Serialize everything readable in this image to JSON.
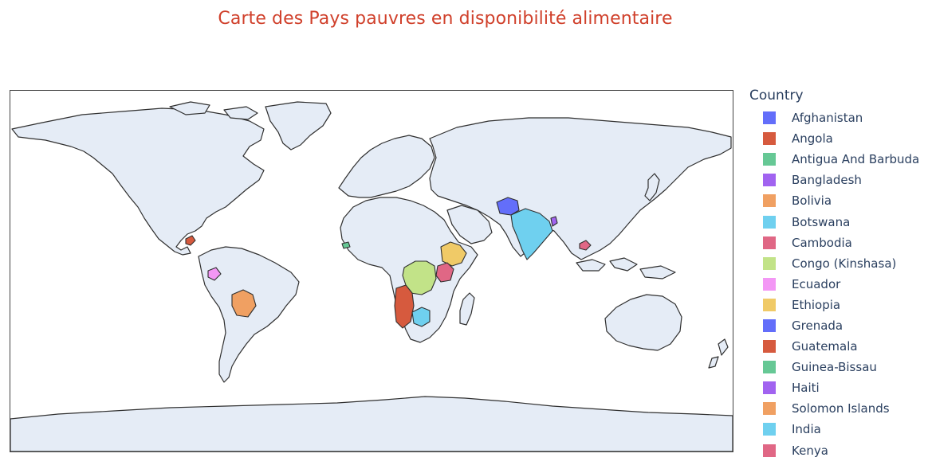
{
  "title": "Carte des Pays pauvres en disponibilité alimentaire",
  "legend": {
    "title": "Country",
    "items": [
      {
        "label": "Afghanistan",
        "color": "#636efa"
      },
      {
        "label": "Angola",
        "color": "#d65a3e"
      },
      {
        "label": "Antigua And Barbuda",
        "color": "#66c895"
      },
      {
        "label": "Bangladesh",
        "color": "#a163f0"
      },
      {
        "label": "Bolivia",
        "color": "#f0a062"
      },
      {
        "label": "Botswana",
        "color": "#6fd0ef"
      },
      {
        "label": "Cambodia",
        "color": "#e06785"
      },
      {
        "label": "Congo (Kinshasa)",
        "color": "#c2e388"
      },
      {
        "label": "Ecuador",
        "color": "#f397f5"
      },
      {
        "label": "Ethiopia",
        "color": "#f0ca67"
      },
      {
        "label": "Grenada",
        "color": "#636efa"
      },
      {
        "label": "Guatemala",
        "color": "#d65a3e"
      },
      {
        "label": "Guinea-Bissau",
        "color": "#66c895"
      },
      {
        "label": "Haiti",
        "color": "#a163f0"
      },
      {
        "label": "Solomon Islands",
        "color": "#f0a062"
      },
      {
        "label": "India",
        "color": "#6fd0ef"
      },
      {
        "label": "Kenya",
        "color": "#e06785"
      }
    ]
  },
  "map": {
    "land_color": "#e5ecf6",
    "highlighted": [
      {
        "country": "Afghanistan",
        "color": "#636efa"
      },
      {
        "country": "Angola",
        "color": "#d65a3e"
      },
      {
        "country": "Bangladesh",
        "color": "#a163f0"
      },
      {
        "country": "Bolivia",
        "color": "#f0a062"
      },
      {
        "country": "Botswana",
        "color": "#6fd0ef"
      },
      {
        "country": "Cambodia",
        "color": "#e06785"
      },
      {
        "country": "Congo (Kinshasa)",
        "color": "#c2e388"
      },
      {
        "country": "Ecuador",
        "color": "#f397f5"
      },
      {
        "country": "Ethiopia",
        "color": "#f0ca67"
      },
      {
        "country": "Guatemala",
        "color": "#d65a3e"
      },
      {
        "country": "Guinea-Bissau",
        "color": "#66c895"
      },
      {
        "country": "India",
        "color": "#6fd0ef"
      },
      {
        "country": "Kenya",
        "color": "#e06785"
      }
    ]
  }
}
